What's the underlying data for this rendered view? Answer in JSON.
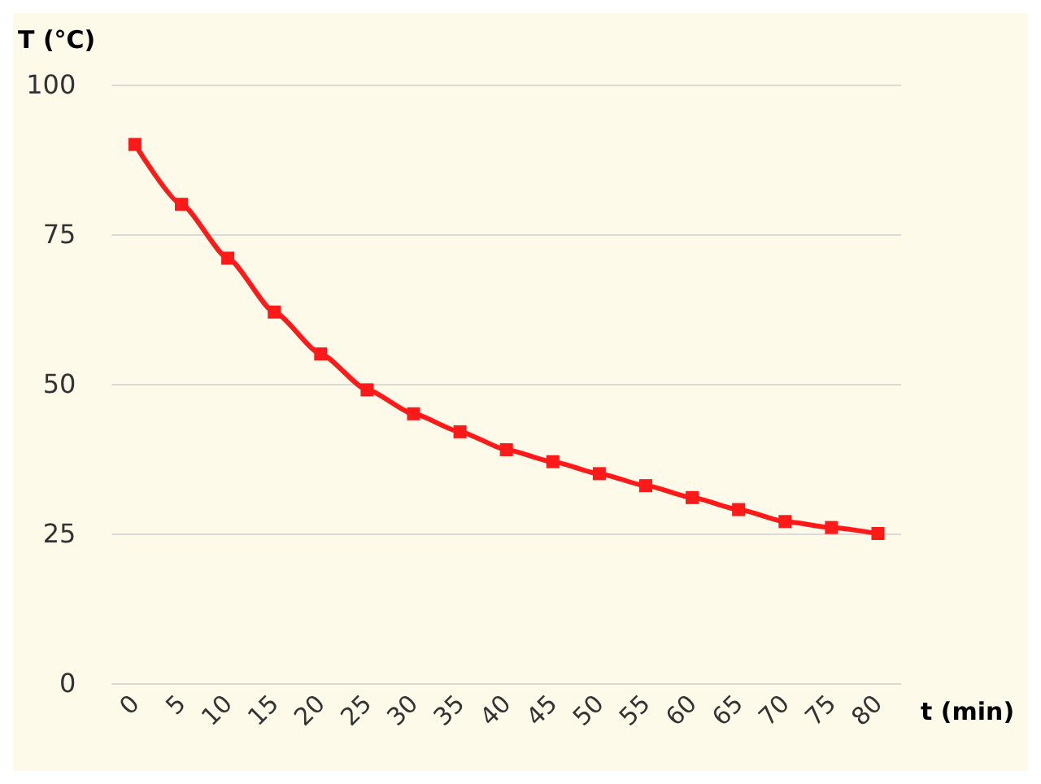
{
  "chart_data": {
    "type": "line",
    "xlabel": "t (min)",
    "ylabel": "T (°C)",
    "categories": [
      "0",
      "5",
      "10",
      "15",
      "20",
      "25",
      "30",
      "35",
      "40",
      "45",
      "50",
      "55",
      "60",
      "65",
      "70",
      "75",
      "80"
    ],
    "series": [
      {
        "color": "#ff1a1a",
        "values": [
          90,
          80,
          71,
          62,
          55,
          49,
          45,
          42,
          39,
          37,
          35,
          33,
          31,
          29,
          27,
          26,
          25
        ]
      }
    ],
    "ylim": [
      0,
      100
    ],
    "yticks": [
      0,
      25,
      50,
      75,
      100
    ],
    "grid": "y",
    "marker": "square",
    "line_style": "solid"
  }
}
